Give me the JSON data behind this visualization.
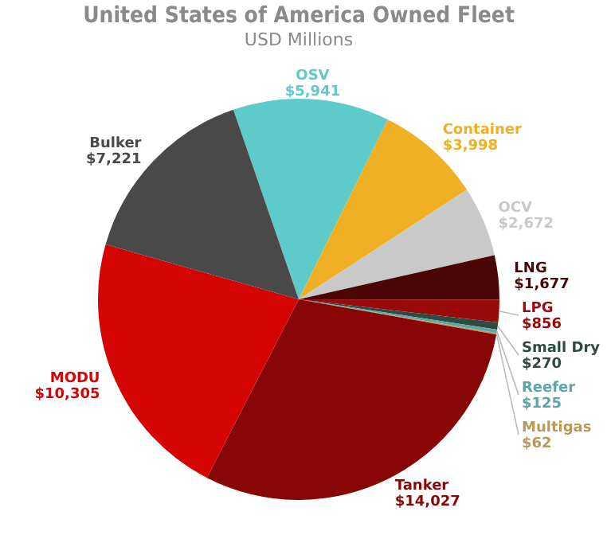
{
  "chart_data": {
    "type": "pie",
    "title": "United States of America Owned Fleet",
    "subtitle": "USD Millions",
    "categories": [
      "OSV",
      "Container",
      "OCV",
      "LNG",
      "LPG",
      "Small Dry",
      "Reefer",
      "Multigas",
      "Tanker",
      "MODU",
      "Bulker"
    ],
    "values": [
      5941,
      3998,
      2672,
      1677,
      856,
      270,
      125,
      62,
      14027,
      10305,
      7221
    ],
    "value_labels": [
      "$5,941",
      "$3,998",
      "$2,672",
      "$1,677",
      "$856",
      "$270",
      "$125",
      "$62",
      "$14,027",
      "$10,305",
      "$7,221"
    ],
    "colors": [
      "#5fcaca",
      "#f0b025",
      "#c9c9c9",
      "#4a0505",
      "#9a0a0a",
      "#2f4a40",
      "#5aa6a8",
      "#b89a55",
      "#880606",
      "#d40404",
      "#494949"
    ],
    "legend": false
  }
}
